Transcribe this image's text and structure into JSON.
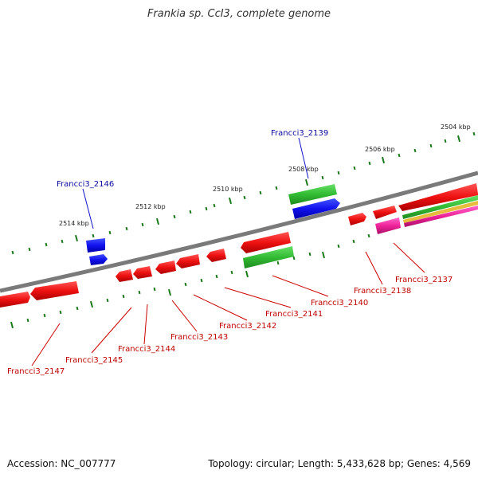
{
  "title": "Frankia sp. CcI3, complete genome",
  "footer": {
    "accession": "Accession: NC_007777",
    "summary": "Topology: circular; Length: 5,433,628 bp; Genes: 4,569"
  },
  "colors": {
    "backbone": "#7a7a7a",
    "tick": "#1a7a1a",
    "forward_gene": "#dd1111",
    "reverse_gene": "#dd1111",
    "blue_gene": "#1111dd",
    "green_gene": "#33bb33",
    "pink_gene": "#ee2299",
    "forward_label": "#0b0b9e",
    "reverse_label": "#c00000",
    "scale_label": "#222222"
  },
  "scale_labels": [
    "2504 kbp",
    "2506 kbp",
    "2508 kbp",
    "2510 kbp",
    "2512 kbp",
    "2514 kbp"
  ],
  "gene_labels": {
    "forward": [
      "Francci3_2139",
      "Francci3_2146"
    ],
    "reverse": [
      "Francci3_2137",
      "Francci3_2138",
      "Francci3_2140",
      "Francci3_2141",
      "Francci3_2142",
      "Francci3_2143",
      "Francci3_2144",
      "Francci3_2145",
      "Francci3_2147"
    ]
  }
}
